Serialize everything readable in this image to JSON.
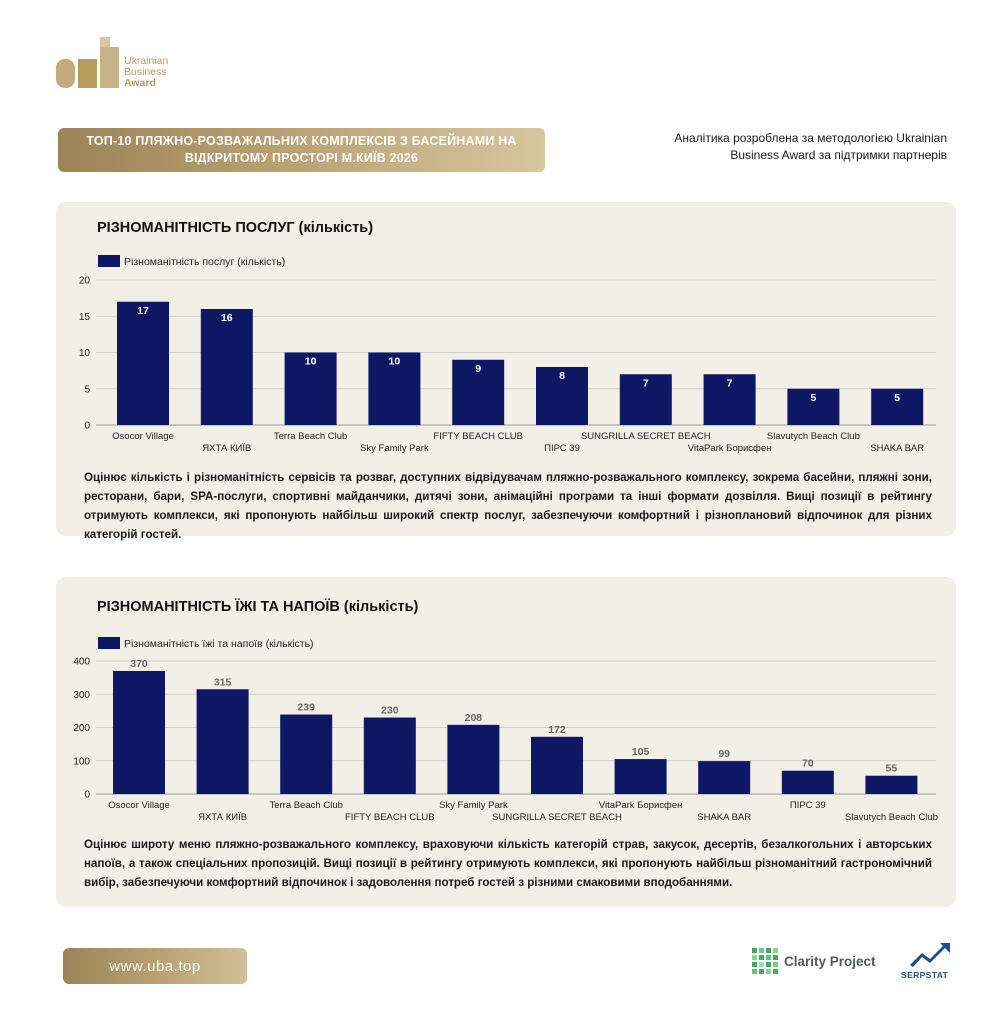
{
  "logo": {
    "line1": "Ukrainian",
    "line2": "Business",
    "line3": "Award"
  },
  "title_line1": "ТОП-10 ПЛЯЖНО-РОЗВАЖАЛЬНИХ КОМПЛЕКСІВ З БАСЕЙНАМИ НА",
  "title_line2": "ВІДКРИТОМУ ПРОСТОРІ М.КИЇВ 2026",
  "methodology_line1": "Аналітика розроблена за методологією Ukrainian",
  "methodology_line2": "Business Award за підтримки партнерів",
  "colors": {
    "bar": "#0e1763",
    "gold": "#b8a071",
    "card": "#f2efe7"
  },
  "chart_data": [
    {
      "type": "bar",
      "title": "РІЗНОМАНІТНІСТЬ ПОСЛУГ (кількість)",
      "legend": "Різноманітність послуг (кількість)",
      "categories": [
        "Osocor Village",
        "ЯХТА КИЇВ",
        "Terra Beach Club",
        "Sky Family Park",
        "FIFTY BEACH CLUB",
        "ПІРС 39",
        "SUNGRILLA SECRET BEACH",
        "VitaPark Борисфен",
        "Slavutych Beach Club",
        "SHAKA BAR"
      ],
      "values": [
        17,
        16,
        10,
        10,
        9,
        8,
        7,
        7,
        5,
        5
      ],
      "yticks": [
        0,
        5,
        10,
        15,
        20
      ],
      "ylim": [
        0,
        20
      ],
      "grid": true,
      "legend_position": "top-left",
      "data_labels": "inside"
    },
    {
      "type": "bar",
      "title": "РІЗНОМАНІТНІСТЬ ЇЖІ ТА НАПОЇВ (кількість)",
      "legend": "Різноманітність їжі та напоїв (кількість)",
      "categories": [
        "Osocor Village",
        "ЯХТА КИЇВ",
        "Terra Beach Club",
        "FIFTY BEACH CLUB",
        "Sky Family Park",
        "SUNGRILLA SECRET BEACH",
        "VitaPark Борисфен",
        "SHAKA BAR",
        "ПІРС 39",
        "Slavutych Beach Club"
      ],
      "values": [
        370,
        315,
        239,
        230,
        208,
        172,
        105,
        99,
        70,
        55
      ],
      "yticks": [
        0,
        100,
        200,
        300,
        400
      ],
      "ylim": [
        0,
        400
      ],
      "grid": true,
      "legend_position": "top-left",
      "data_labels": "above"
    }
  ],
  "desc1": "Оцінює кількість і різноманітність сервісів та розваг, доступних відвідувачам пляжно-розважального комплексу, зокрема басейни, пляжні зони, ресторани, бари, SPA-послуги, спортивні майданчики, дитячі зони, анімаційні програми та інші формати дозвілля. Вищі позиції в рейтингу отримують комплекси, які пропонують найбільш широкий спектр послуг, забезпечуючи комфортний і різноплановий відпочинок для різних категорій гостей.",
  "desc2": "Оцінює широту меню пляжно-розважального комплексу, враховуючи кількість категорій страв, закусок, десертів, безалкогольних і авторських напоїв, а також спеціальних пропозицій. Вищі позиції в рейтингу отримують комплекси, які пропонують найбільш різноманітний гастрономічний вибір, забезпечуючи комфортний відпочинок і задоволення потреб гостей з різними смаковими вподобаннями.",
  "url": "www.uba.top",
  "partners": {
    "clarity": "Clarity Project",
    "serpstat": "SERPSTAT"
  }
}
